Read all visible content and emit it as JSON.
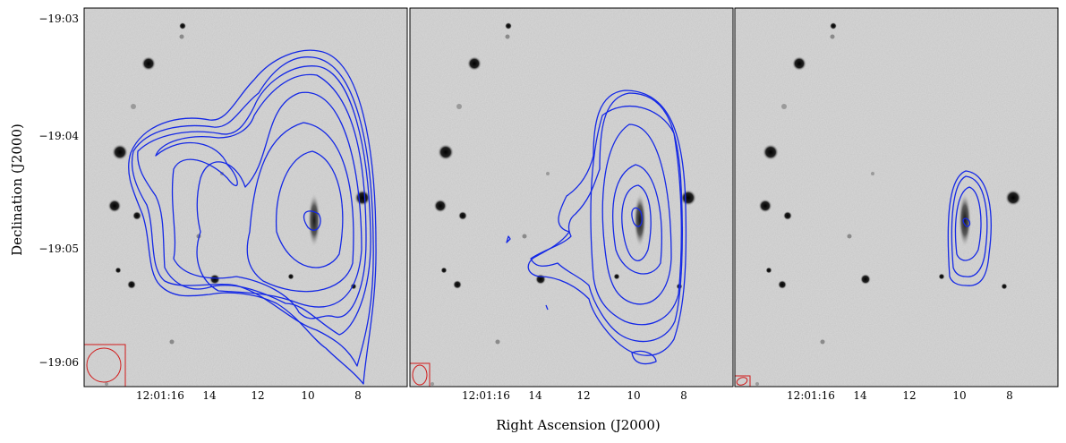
{
  "figure": {
    "xlabel": "Right Ascension (J2000)",
    "ylabel": "Declination (J2000)",
    "ra_ticks": [
      "12:01:16",
      "14",
      "12",
      "10",
      "8"
    ],
    "dec_ticks": [
      "−19:03",
      "−19:04",
      "−19:05",
      "−19:06"
    ],
    "colors": {
      "contour": "#1428e6",
      "beam": "#d11a1a",
      "background": "#c9c9c9"
    }
  },
  "chart_data": {
    "type": "contour",
    "panels": [
      {
        "name": "panel-1",
        "contour_levels_shown": 8,
        "beam": "large"
      },
      {
        "name": "panel-2",
        "contour_levels_shown": 7,
        "beam": "medium"
      },
      {
        "name": "panel-3",
        "contour_levels_shown": 3,
        "beam": "small"
      }
    ],
    "xlabel": "Right Ascension (J2000)",
    "ylabel": "Declination (J2000)"
  }
}
